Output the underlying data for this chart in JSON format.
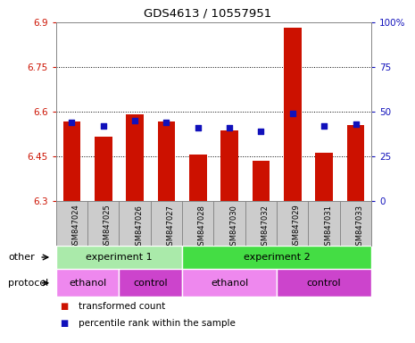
{
  "title": "GDS4613 / 10557951",
  "samples": [
    "GSM847024",
    "GSM847025",
    "GSM847026",
    "GSM847027",
    "GSM847028",
    "GSM847030",
    "GSM847032",
    "GSM847029",
    "GSM847031",
    "GSM847033"
  ],
  "transformed_count": [
    6.565,
    6.515,
    6.59,
    6.565,
    6.455,
    6.535,
    6.435,
    6.882,
    6.46,
    6.555
  ],
  "percentile_rank": [
    44,
    42,
    45,
    44,
    41,
    41,
    39,
    49,
    42,
    43
  ],
  "ylim": [
    6.3,
    6.9
  ],
  "yticks": [
    6.3,
    6.45,
    6.6,
    6.75,
    6.9
  ],
  "ytick_labels": [
    "6.3",
    "6.45",
    "6.6",
    "6.75",
    "6.9"
  ],
  "y2lim": [
    0,
    100
  ],
  "y2ticks": [
    0,
    25,
    50,
    75,
    100
  ],
  "y2ticklabels": [
    "0",
    "25",
    "50",
    "75",
    "100%"
  ],
  "bar_color": "#cc1100",
  "dot_color": "#1111bb",
  "bar_width": 0.55,
  "tick_label_color_left": "#cc1100",
  "tick_label_color_right": "#1111bb",
  "other_groups": [
    {
      "label": "experiment 1",
      "start": 0,
      "end": 4,
      "color": "#aaeaaa"
    },
    {
      "label": "experiment 2",
      "start": 4,
      "end": 10,
      "color": "#44dd44"
    }
  ],
  "protocol_groups": [
    {
      "label": "ethanol",
      "start": 0,
      "end": 2,
      "color": "#ee88ee"
    },
    {
      "label": "control",
      "start": 2,
      "end": 4,
      "color": "#cc44cc"
    },
    {
      "label": "ethanol",
      "start": 4,
      "end": 7,
      "color": "#ee88ee"
    },
    {
      "label": "control",
      "start": 7,
      "end": 10,
      "color": "#cc44cc"
    }
  ],
  "legend_items": [
    {
      "label": "transformed count",
      "color": "#cc1100"
    },
    {
      "label": "percentile rank within the sample",
      "color": "#1111bb"
    }
  ],
  "other_label": "other",
  "protocol_label": "protocol",
  "xlabel_color": "#000000",
  "sample_bg": "#cccccc"
}
